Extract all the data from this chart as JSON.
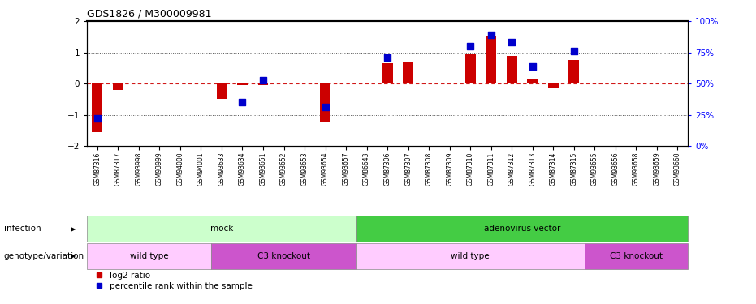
{
  "title": "GDS1826 / M300009981",
  "samples": [
    "GSM87316",
    "GSM87317",
    "GSM93998",
    "GSM93999",
    "GSM94000",
    "GSM94001",
    "GSM93633",
    "GSM93634",
    "GSM93651",
    "GSM93652",
    "GSM93653",
    "GSM93654",
    "GSM93657",
    "GSM86643",
    "GSM87306",
    "GSM87307",
    "GSM87308",
    "GSM87309",
    "GSM87310",
    "GSM87311",
    "GSM87312",
    "GSM87313",
    "GSM87314",
    "GSM87315",
    "GSM93655",
    "GSM93656",
    "GSM93658",
    "GSM93659",
    "GSM93660"
  ],
  "log2_ratio": [
    -1.55,
    -0.2,
    0.0,
    0.0,
    0.0,
    0.0,
    -0.5,
    -0.05,
    -0.05,
    0.0,
    0.0,
    -1.25,
    0.0,
    0.0,
    0.65,
    0.7,
    0.0,
    0.0,
    0.97,
    1.55,
    0.9,
    0.15,
    -0.12,
    0.75,
    0.0,
    0.0,
    0.0,
    0.0,
    0.0
  ],
  "percentile_rank_pct": [
    22,
    null,
    null,
    null,
    null,
    null,
    null,
    35,
    53,
    null,
    null,
    31,
    null,
    null,
    71,
    null,
    null,
    null,
    80,
    89,
    83,
    64,
    null,
    76,
    null,
    null,
    null,
    null,
    null
  ],
  "infection_groups": [
    {
      "label": "mock",
      "start": 0,
      "end": 13,
      "color": "#ccffcc"
    },
    {
      "label": "adenovirus vector",
      "start": 13,
      "end": 29,
      "color": "#44cc44"
    }
  ],
  "genotype_groups": [
    {
      "label": "wild type",
      "start": 0,
      "end": 6,
      "color": "#ffccff"
    },
    {
      "label": "C3 knockout",
      "start": 6,
      "end": 13,
      "color": "#cc55cc"
    },
    {
      "label": "wild type",
      "start": 13,
      "end": 24,
      "color": "#ffccff"
    },
    {
      "label": "C3 knockout",
      "start": 24,
      "end": 29,
      "color": "#cc55cc"
    }
  ],
  "ylim": [
    -2,
    2
  ],
  "y2lim": [
    0,
    100
  ],
  "yticks_left": [
    -2,
    -1,
    0,
    1,
    2
  ],
  "yticks_right": [
    0,
    25,
    50,
    75,
    100
  ],
  "bar_color": "#cc0000",
  "dot_color": "#0000cc",
  "hline_color": "#cc0000",
  "dotted_color": "#555555",
  "row_label_infection": "infection",
  "row_label_genotype": "genotype/variation",
  "legend_red": "log2 ratio",
  "legend_blue": "percentile rank within the sample"
}
